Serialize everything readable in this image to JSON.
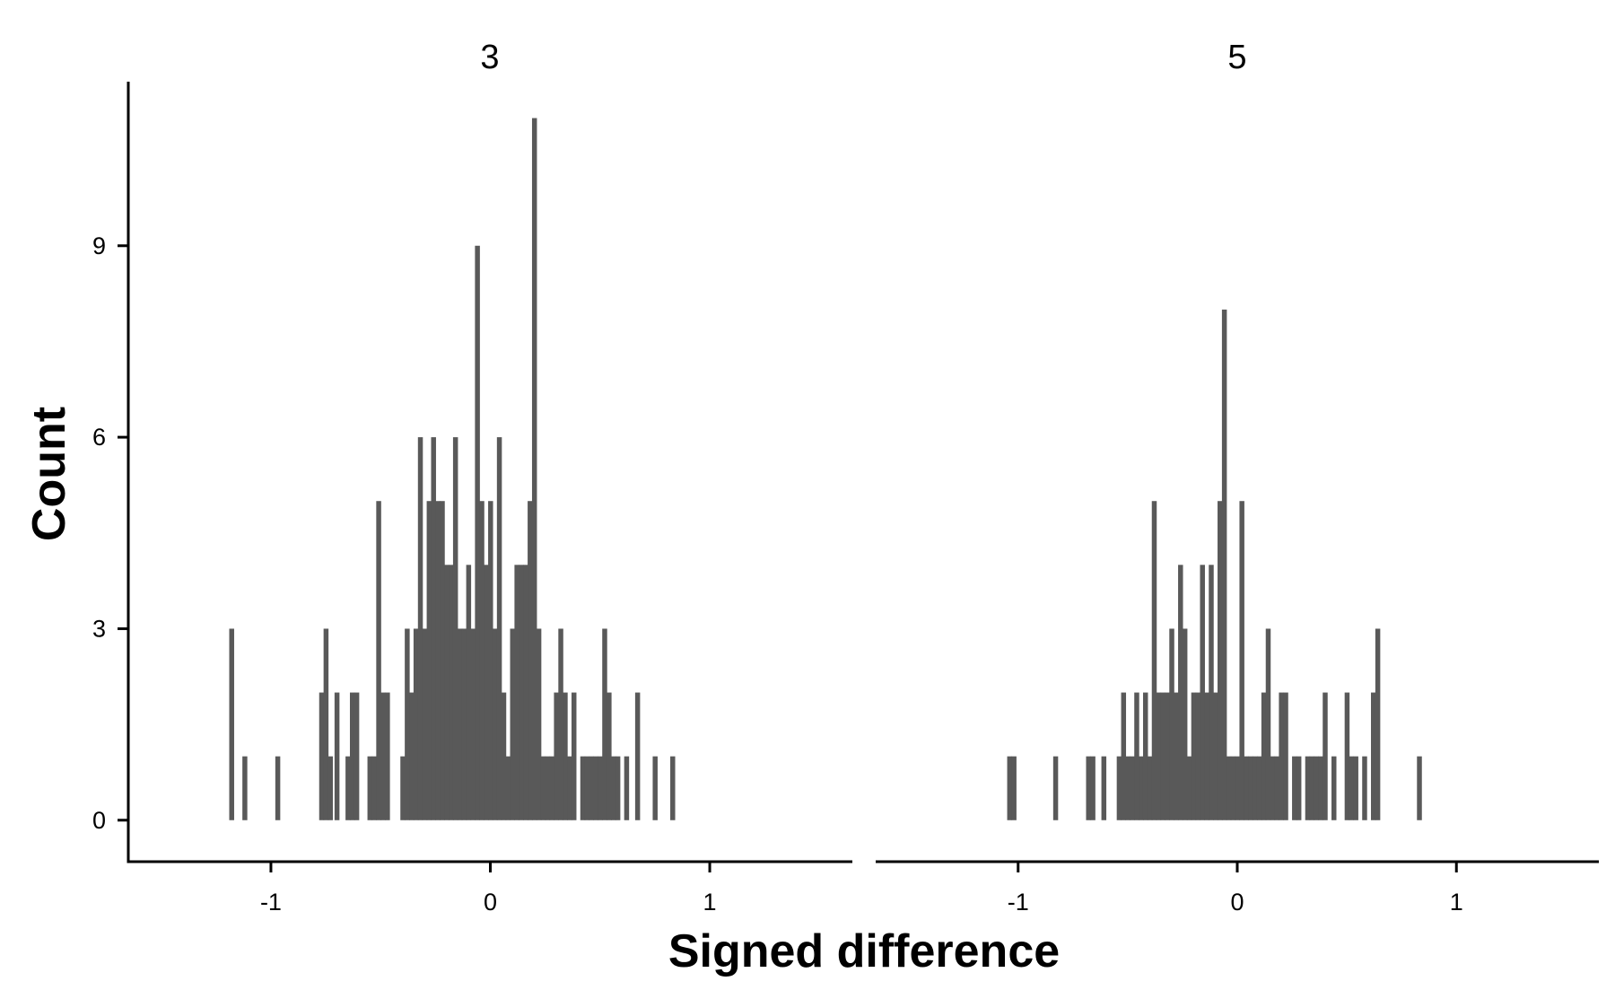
{
  "chart_data": {
    "type": "bar",
    "subtype": "histogram",
    "xlabel": "Signed difference",
    "ylabel": "Count",
    "xlim": [
      -1.65,
      1.65
    ],
    "ylim": [
      -0.65,
      11.5
    ],
    "x_ticks": [
      -1,
      0,
      1
    ],
    "x_tick_labels": [
      "-1",
      "0",
      "1"
    ],
    "y_ticks": [
      0,
      3,
      6,
      9
    ],
    "y_tick_labels": [
      "0",
      "3",
      "6",
      "9"
    ],
    "bin_width": 0.02,
    "grid": false,
    "legend": "none",
    "bar_color": "#595959",
    "facets": [
      {
        "label": "3",
        "bins": [
          [
            -1.18,
            3
          ],
          [
            -1.12,
            1
          ],
          [
            -0.97,
            1
          ],
          [
            -0.77,
            2
          ],
          [
            -0.75,
            3
          ],
          [
            -0.73,
            1
          ],
          [
            -0.7,
            2
          ],
          [
            -0.65,
            1
          ],
          [
            -0.63,
            2
          ],
          [
            -0.61,
            2
          ],
          [
            -0.55,
            1
          ],
          [
            -0.53,
            1
          ],
          [
            -0.51,
            5
          ],
          [
            -0.49,
            2
          ],
          [
            -0.47,
            2
          ],
          [
            -0.4,
            1
          ],
          [
            -0.38,
            3
          ],
          [
            -0.36,
            2
          ],
          [
            -0.34,
            3
          ],
          [
            -0.32,
            6
          ],
          [
            -0.3,
            3
          ],
          [
            -0.28,
            5
          ],
          [
            -0.26,
            6
          ],
          [
            -0.24,
            5
          ],
          [
            -0.22,
            5
          ],
          [
            -0.2,
            4
          ],
          [
            -0.18,
            4
          ],
          [
            -0.16,
            6
          ],
          [
            -0.14,
            3
          ],
          [
            -0.12,
            3
          ],
          [
            -0.1,
            4
          ],
          [
            -0.08,
            3
          ],
          [
            -0.06,
            9
          ],
          [
            -0.04,
            5
          ],
          [
            -0.02,
            4
          ],
          [
            0,
            5
          ],
          [
            0.02,
            3
          ],
          [
            0.04,
            6
          ],
          [
            0.06,
            2
          ],
          [
            0.08,
            1
          ],
          [
            0.1,
            3
          ],
          [
            0.12,
            4
          ],
          [
            0.14,
            4
          ],
          [
            0.16,
            4
          ],
          [
            0.18,
            5
          ],
          [
            0.2,
            11
          ],
          [
            0.22,
            3
          ],
          [
            0.24,
            1
          ],
          [
            0.26,
            1
          ],
          [
            0.28,
            1
          ],
          [
            0.3,
            2
          ],
          [
            0.32,
            3
          ],
          [
            0.34,
            2
          ],
          [
            0.36,
            1
          ],
          [
            0.38,
            2
          ],
          [
            0.42,
            1
          ],
          [
            0.44,
            1
          ],
          [
            0.46,
            1
          ],
          [
            0.48,
            1
          ],
          [
            0.5,
            1
          ],
          [
            0.52,
            3
          ],
          [
            0.54,
            2
          ],
          [
            0.56,
            1
          ],
          [
            0.58,
            1
          ],
          [
            0.6,
            0
          ],
          [
            0.62,
            1
          ],
          [
            0.67,
            2
          ],
          [
            0.75,
            1
          ],
          [
            0.83,
            1
          ]
        ]
      },
      {
        "label": "5",
        "bins": [
          [
            -1.04,
            1
          ],
          [
            -1.02,
            1
          ],
          [
            -0.83,
            1
          ],
          [
            -0.68,
            1
          ],
          [
            -0.66,
            1
          ],
          [
            -0.61,
            1
          ],
          [
            -0.54,
            1
          ],
          [
            -0.52,
            2
          ],
          [
            -0.5,
            1
          ],
          [
            -0.48,
            1
          ],
          [
            -0.46,
            2
          ],
          [
            -0.44,
            1
          ],
          [
            -0.42,
            2
          ],
          [
            -0.4,
            1
          ],
          [
            -0.38,
            5
          ],
          [
            -0.36,
            2
          ],
          [
            -0.34,
            2
          ],
          [
            -0.32,
            2
          ],
          [
            -0.3,
            3
          ],
          [
            -0.28,
            2
          ],
          [
            -0.26,
            4
          ],
          [
            -0.24,
            3
          ],
          [
            -0.22,
            1
          ],
          [
            -0.2,
            2
          ],
          [
            -0.18,
            2
          ],
          [
            -0.16,
            4
          ],
          [
            -0.14,
            2
          ],
          [
            -0.12,
            4
          ],
          [
            -0.1,
            2
          ],
          [
            -0.08,
            5
          ],
          [
            -0.06,
            8
          ],
          [
            -0.04,
            1
          ],
          [
            -0.02,
            1
          ],
          [
            0,
            1
          ],
          [
            0.02,
            5
          ],
          [
            0.04,
            1
          ],
          [
            0.06,
            1
          ],
          [
            0.08,
            1
          ],
          [
            0.1,
            1
          ],
          [
            0.12,
            2
          ],
          [
            0.14,
            3
          ],
          [
            0.16,
            1
          ],
          [
            0.18,
            1
          ],
          [
            0.2,
            2
          ],
          [
            0.22,
            2
          ],
          [
            0.26,
            1
          ],
          [
            0.28,
            1
          ],
          [
            0.32,
            1
          ],
          [
            0.34,
            1
          ],
          [
            0.36,
            1
          ],
          [
            0.38,
            1
          ],
          [
            0.4,
            2
          ],
          [
            0.44,
            1
          ],
          [
            0.5,
            2
          ],
          [
            0.52,
            1
          ],
          [
            0.54,
            1
          ],
          [
            0.58,
            1
          ],
          [
            0.62,
            2
          ],
          [
            0.64,
            3
          ],
          [
            0.83,
            1
          ]
        ]
      }
    ]
  }
}
